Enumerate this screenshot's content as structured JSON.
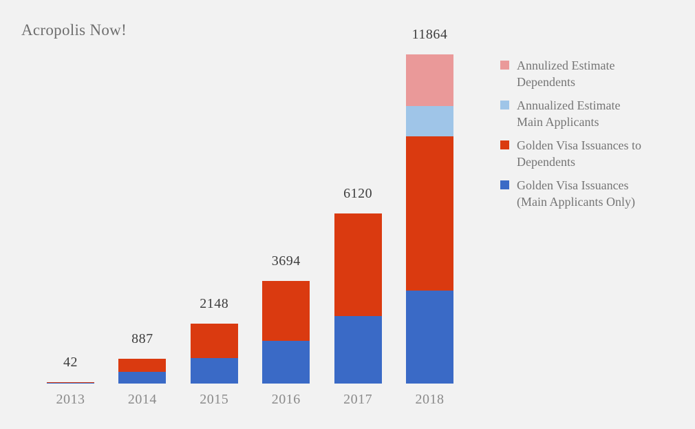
{
  "title": "Acropolis Now!",
  "background_color": "#f2f2f2",
  "colors": {
    "main_applicants_blue": "#3a6ac6",
    "dependents_red": "#da3a10",
    "estimate_main_light_blue": "#9fc5e8",
    "estimate_dependents_pink": "#ea9999",
    "title_gray": "#6e6e6e",
    "value_label_gray": "#3d3d3d",
    "axis_label_gray": "#8a8a8a",
    "legend_text_gray": "#757575"
  },
  "chart_data": {
    "type": "bar",
    "stacked": true,
    "title": "Acropolis Now!",
    "categories": [
      "2013",
      "2014",
      "2015",
      "2016",
      "2017",
      "2018"
    ],
    "totals": [
      42,
      887,
      2148,
      3694,
      6120,
      11864
    ],
    "series": [
      {
        "name": "Golden Visa Issuances (Main Applicants Only)",
        "color": "#3a6ac6",
        "values": [
          21,
          423,
          913,
          1532,
          2436,
          3358
        ]
      },
      {
        "name": "Golden Visa Issuances to Dependents",
        "color": "#da3a10",
        "values": [
          21,
          464,
          1235,
          2162,
          3684,
          5551
        ]
      },
      {
        "name": "Annualized Estimate Main Applicants",
        "color": "#9fc5e8",
        "values": [
          0,
          0,
          0,
          0,
          0,
          1085
        ]
      },
      {
        "name": "Annulized Estimate Dependents",
        "color": "#ea9999",
        "values": [
          0,
          0,
          0,
          0,
          0,
          1870
        ]
      }
    ],
    "xlabel": "",
    "ylabel": "",
    "ylim": [
      0,
      11900
    ],
    "grid": false,
    "yaxis_visible": false,
    "legend_position": "right",
    "value_labels": "stack totals shown above each bar"
  },
  "legend": {
    "items": [
      {
        "line1": "Annulized Estimate",
        "line2": "Dependents",
        "color": "#ea9999",
        "series": "Annulized Estimate Dependents"
      },
      {
        "line1": "Annualized Estimate",
        "line2": "Main Applicants",
        "color": "#9fc5e8",
        "series": "Annualized Estimate Main Applicants"
      },
      {
        "line1": "Golden Visa Issuances to",
        "line2": "Dependents",
        "color": "#da3a10",
        "series": "Golden Visa Issuances to Dependents"
      },
      {
        "line1": "Golden Visa Issuances",
        "line2": "(Main Applicants Only)",
        "color": "#3a6ac6",
        "series": "Golden Visa Issuances (Main Applicants Only)"
      }
    ]
  }
}
